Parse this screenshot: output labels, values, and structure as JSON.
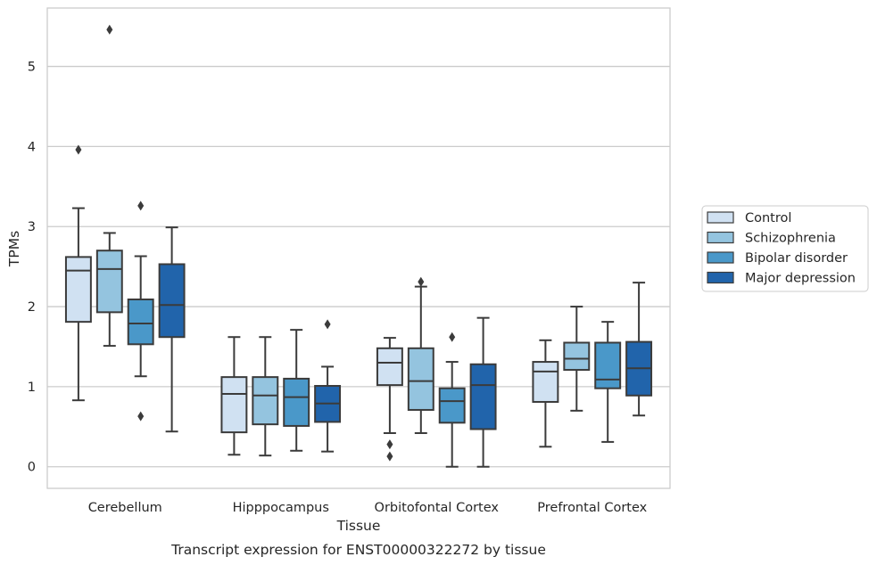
{
  "chart_data": {
    "type": "box",
    "title": "",
    "caption": "Transcript expression for ENST00000322272 by tissue",
    "xlabel": "Tissue",
    "ylabel": "TPMs",
    "ylim": [
      -0.27,
      5.73
    ],
    "yticks": [
      "0",
      "1",
      "2",
      "3",
      "4",
      "5"
    ],
    "grid": "horizontal",
    "legend_position": "right",
    "categories": [
      "Cerebellum",
      "Hipppocampus",
      "Orbitofontal Cortex",
      "Prefrontal Cortex"
    ],
    "series": [
      {
        "name": "Control",
        "color": "#d0e1f2",
        "boxes": [
          {
            "whislo": 0.83,
            "q1": 1.81,
            "med": 2.45,
            "q3": 2.62,
            "whishi": 3.23,
            "fliers": [
              3.96
            ]
          },
          {
            "whislo": 0.15,
            "q1": 0.43,
            "med": 0.91,
            "q3": 1.12,
            "whishi": 1.62,
            "fliers": []
          },
          {
            "whislo": 0.42,
            "q1": 1.02,
            "med": 1.3,
            "q3": 1.48,
            "whishi": 1.61,
            "fliers": [
              0.28,
              0.13
            ]
          },
          {
            "whislo": 0.25,
            "q1": 0.81,
            "med": 1.19,
            "q3": 1.31,
            "whishi": 1.58,
            "fliers": []
          }
        ]
      },
      {
        "name": "Schizophrenia",
        "color": "#94c4df",
        "boxes": [
          {
            "whislo": 1.51,
            "q1": 1.93,
            "med": 2.47,
            "q3": 2.7,
            "whishi": 2.92,
            "fliers": [
              5.46
            ]
          },
          {
            "whislo": 0.14,
            "q1": 0.53,
            "med": 0.89,
            "q3": 1.12,
            "whishi": 1.62,
            "fliers": []
          },
          {
            "whislo": 0.42,
            "q1": 0.71,
            "med": 1.07,
            "q3": 1.48,
            "whishi": 2.25,
            "fliers": [
              2.31
            ]
          },
          {
            "whislo": 0.7,
            "q1": 1.21,
            "med": 1.35,
            "q3": 1.55,
            "whishi": 2.0,
            "fliers": []
          }
        ]
      },
      {
        "name": "Bipolar disorder",
        "color": "#4a98c9",
        "boxes": [
          {
            "whislo": 1.13,
            "q1": 1.53,
            "med": 1.79,
            "q3": 2.09,
            "whishi": 2.63,
            "fliers": [
              3.26,
              0.63
            ]
          },
          {
            "whislo": 0.2,
            "q1": 0.51,
            "med": 0.87,
            "q3": 1.1,
            "whishi": 1.71,
            "fliers": []
          },
          {
            "whislo": 0.0,
            "q1": 0.55,
            "med": 0.82,
            "q3": 0.98,
            "whishi": 1.31,
            "fliers": [
              1.62
            ]
          },
          {
            "whislo": 0.31,
            "q1": 0.98,
            "med": 1.09,
            "q3": 1.55,
            "whishi": 1.81,
            "fliers": []
          }
        ]
      },
      {
        "name": "Major depression",
        "color": "#2164ab",
        "boxes": [
          {
            "whislo": 0.44,
            "q1": 1.62,
            "med": 2.02,
            "q3": 2.53,
            "whishi": 2.99,
            "fliers": []
          },
          {
            "whislo": 0.19,
            "q1": 0.56,
            "med": 0.79,
            "q3": 1.01,
            "whishi": 1.25,
            "fliers": [
              1.78
            ]
          },
          {
            "whislo": 0.0,
            "q1": 0.47,
            "med": 1.02,
            "q3": 1.28,
            "whishi": 1.86,
            "fliers": []
          },
          {
            "whislo": 0.64,
            "q1": 0.89,
            "med": 1.23,
            "q3": 1.56,
            "whishi": 2.3,
            "fliers": []
          }
        ]
      }
    ]
  },
  "colors": {
    "grid": "#cccccc",
    "frame": "#cccccc",
    "line": "#3b3b3b",
    "text": "#262626"
  }
}
